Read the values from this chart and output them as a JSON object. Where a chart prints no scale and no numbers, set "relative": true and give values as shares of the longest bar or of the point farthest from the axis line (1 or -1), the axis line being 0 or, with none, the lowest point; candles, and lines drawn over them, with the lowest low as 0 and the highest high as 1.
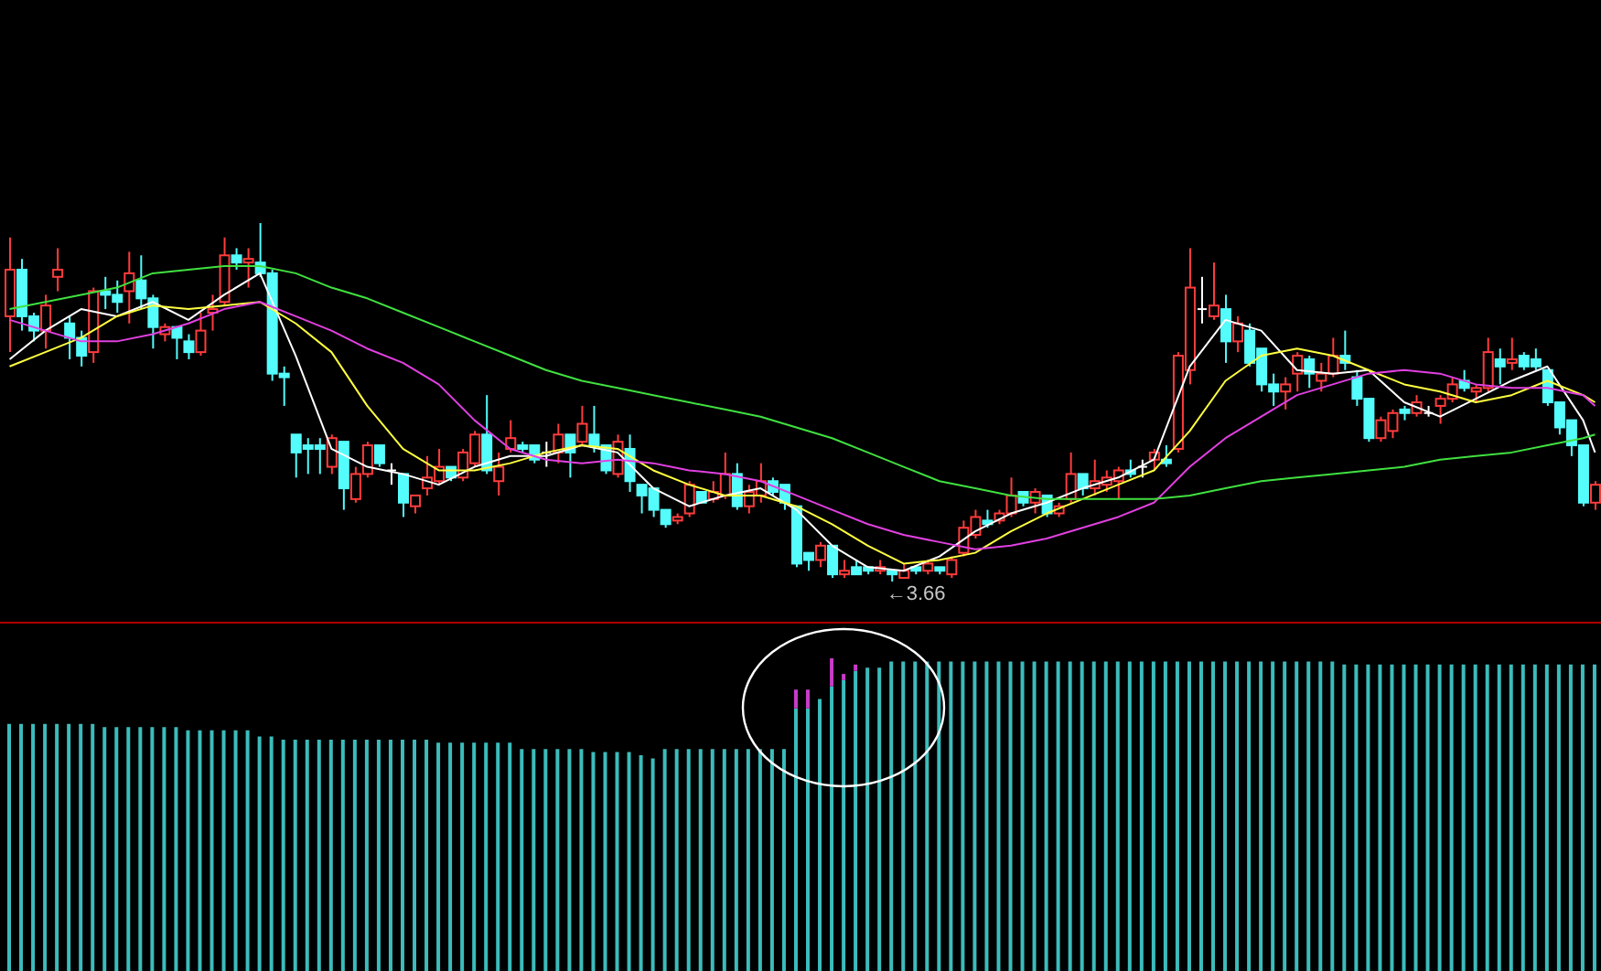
{
  "chart_data": [
    {
      "type": "candlestick",
      "relative": true,
      "marker": "none",
      "annotations": [
        "←3.66"
      ],
      "categories": [
        null,
        null,
        null,
        null,
        null,
        null,
        null,
        null,
        null,
        null,
        null,
        null,
        null,
        null,
        null,
        null,
        null,
        null,
        null,
        null,
        null,
        null,
        null,
        null,
        null,
        null,
        null,
        null,
        null,
        null,
        null,
        null,
        null,
        null,
        null,
        null,
        null,
        null,
        null,
        null,
        null,
        null,
        null,
        null,
        null,
        null,
        null,
        null,
        null,
        null,
        null,
        null,
        null,
        null,
        null,
        null,
        null,
        null,
        null,
        null,
        null,
        null,
        null,
        null,
        null,
        null,
        null,
        null,
        null,
        null,
        null,
        null,
        null,
        null,
        null,
        null,
        null,
        null,
        null,
        null,
        null,
        null,
        null,
        null,
        null,
        null,
        null,
        null,
        null,
        null,
        null,
        null,
        null,
        null,
        null,
        null,
        null,
        null,
        null,
        null,
        null,
        null,
        null,
        null,
        null,
        null,
        null,
        null,
        null,
        null,
        null,
        null,
        null,
        null,
        null,
        null,
        null,
        null,
        null,
        null,
        null,
        null,
        null,
        null,
        null,
        null,
        null,
        null,
        null,
        null,
        null,
        null,
        null,
        null
      ],
      "ohlc": [
        [
          0.74,
          0.96,
          0.64,
          0.87
        ],
        [
          0.87,
          0.9,
          0.7,
          0.74
        ],
        [
          0.74,
          0.75,
          0.67,
          0.7
        ],
        [
          0.7,
          0.8,
          0.65,
          0.77
        ],
        [
          0.85,
          0.93,
          0.81,
          0.87
        ],
        [
          0.72,
          0.74,
          0.62,
          0.68
        ],
        [
          0.68,
          0.7,
          0.6,
          0.63
        ],
        [
          0.64,
          0.82,
          0.61,
          0.81
        ],
        [
          0.81,
          0.85,
          0.76,
          0.8
        ],
        [
          0.8,
          0.84,
          0.75,
          0.78
        ],
        [
          0.81,
          0.92,
          0.72,
          0.86
        ],
        [
          0.84,
          0.91,
          0.76,
          0.79
        ],
        [
          0.79,
          0.8,
          0.65,
          0.71
        ],
        [
          0.69,
          0.72,
          0.67,
          0.71
        ],
        [
          0.71,
          0.71,
          0.62,
          0.68
        ],
        [
          0.67,
          0.69,
          0.62,
          0.64
        ],
        [
          0.64,
          0.75,
          0.63,
          0.7
        ],
        [
          0.75,
          0.8,
          0.7,
          0.76
        ],
        [
          0.78,
          0.96,
          0.77,
          0.91
        ],
        [
          0.91,
          0.93,
          0.87,
          0.89
        ],
        [
          0.89,
          0.93,
          0.82,
          0.9
        ],
        [
          0.89,
          1.0,
          0.85,
          0.86
        ],
        [
          0.86,
          0.87,
          0.56,
          0.58
        ],
        [
          0.58,
          0.6,
          0.49,
          0.57
        ],
        [
          0.41,
          0.41,
          0.29,
          0.36
        ],
        [
          0.38,
          0.4,
          0.3,
          0.37
        ],
        [
          0.38,
          0.4,
          0.3,
          0.37
        ],
        [
          0.32,
          0.41,
          0.3,
          0.4
        ],
        [
          0.39,
          0.39,
          0.2,
          0.26
        ],
        [
          0.23,
          0.32,
          0.22,
          0.3
        ],
        [
          0.3,
          0.39,
          0.29,
          0.38
        ],
        [
          0.38,
          0.38,
          0.32,
          0.33
        ],
        [
          0.31,
          0.33,
          0.27,
          0.31
        ],
        [
          0.3,
          0.3,
          0.18,
          0.22
        ],
        [
          0.21,
          0.24,
          0.19,
          0.24
        ],
        [
          0.26,
          0.35,
          0.24,
          0.29
        ],
        [
          0.28,
          0.37,
          0.27,
          0.32
        ],
        [
          0.32,
          0.32,
          0.28,
          0.29
        ],
        [
          0.29,
          0.37,
          0.28,
          0.36
        ],
        [
          0.33,
          0.42,
          0.32,
          0.41
        ],
        [
          0.41,
          0.52,
          0.3,
          0.31
        ],
        [
          0.28,
          0.36,
          0.24,
          0.32
        ],
        [
          0.37,
          0.45,
          0.36,
          0.4
        ],
        [
          0.38,
          0.39,
          0.36,
          0.37
        ],
        [
          0.38,
          0.38,
          0.33,
          0.34
        ],
        [
          0.36,
          0.39,
          0.32,
          0.36
        ],
        [
          0.36,
          0.44,
          0.33,
          0.41
        ],
        [
          0.41,
          0.41,
          0.29,
          0.36
        ],
        [
          0.39,
          0.49,
          0.38,
          0.44
        ],
        [
          0.41,
          0.49,
          0.36,
          0.38
        ],
        [
          0.38,
          0.38,
          0.3,
          0.31
        ],
        [
          0.3,
          0.41,
          0.29,
          0.39
        ],
        [
          0.37,
          0.41,
          0.25,
          0.28
        ],
        [
          0.27,
          0.27,
          0.19,
          0.24
        ],
        [
          0.26,
          0.26,
          0.18,
          0.2
        ],
        [
          0.2,
          0.2,
          0.15,
          0.16
        ],
        [
          0.17,
          0.19,
          0.16,
          0.18
        ],
        [
          0.19,
          0.28,
          0.18,
          0.27
        ],
        [
          0.25,
          0.25,
          0.22,
          0.22
        ],
        [
          0.23,
          0.28,
          0.22,
          0.25
        ],
        [
          0.24,
          0.36,
          0.23,
          0.3
        ],
        [
          0.3,
          0.33,
          0.2,
          0.21
        ],
        [
          0.21,
          0.27,
          0.19,
          0.25
        ],
        [
          0.24,
          0.33,
          0.22,
          0.28
        ],
        [
          0.28,
          0.29,
          0.24,
          0.25
        ],
        [
          0.27,
          0.27,
          0.2,
          0.22
        ],
        [
          0.21,
          0.21,
          0.04,
          0.05
        ],
        [
          0.08,
          0.08,
          0.03,
          0.06
        ],
        [
          0.06,
          0.11,
          0.04,
          0.1
        ],
        [
          0.1,
          0.1,
          0.01,
          0.02
        ],
        [
          0.02,
          0.06,
          0.01,
          0.03
        ],
        [
          0.04,
          0.06,
          0.02,
          0.02
        ],
        [
          0.04,
          0.04,
          0.02,
          0.03
        ],
        [
          0.03,
          0.06,
          0.02,
          0.04
        ],
        [
          0.03,
          0.03,
          0.0,
          0.02
        ],
        [
          0.01,
          0.05,
          0.01,
          0.03
        ],
        [
          0.04,
          0.04,
          0.02,
          0.03
        ],
        [
          0.03,
          0.06,
          0.02,
          0.05
        ],
        [
          0.04,
          0.04,
          0.02,
          0.03
        ],
        [
          0.02,
          0.07,
          0.01,
          0.06
        ],
        [
          0.08,
          0.17,
          0.07,
          0.15
        ],
        [
          0.13,
          0.2,
          0.12,
          0.18
        ],
        [
          0.17,
          0.2,
          0.15,
          0.16
        ],
        [
          0.17,
          0.2,
          0.16,
          0.19
        ],
        [
          0.19,
          0.29,
          0.18,
          0.24
        ],
        [
          0.25,
          0.25,
          0.21,
          0.22
        ],
        [
          0.22,
          0.26,
          0.19,
          0.25
        ],
        [
          0.24,
          0.24,
          0.18,
          0.19
        ],
        [
          0.19,
          0.22,
          0.18,
          0.21
        ],
        [
          0.23,
          0.36,
          0.22,
          0.3
        ],
        [
          0.3,
          0.3,
          0.24,
          0.26
        ],
        [
          0.26,
          0.34,
          0.24,
          0.28
        ],
        [
          0.27,
          0.31,
          0.25,
          0.29
        ],
        [
          0.28,
          0.32,
          0.23,
          0.31
        ],
        [
          0.31,
          0.34,
          0.29,
          0.3
        ],
        [
          0.32,
          0.34,
          0.29,
          0.32
        ],
        [
          0.34,
          0.37,
          0.31,
          0.36
        ],
        [
          0.34,
          0.38,
          0.32,
          0.33
        ],
        [
          0.37,
          0.64,
          0.36,
          0.63
        ],
        [
          0.59,
          0.93,
          0.55,
          0.82
        ],
        [
          0.76,
          0.85,
          0.72,
          0.76
        ],
        [
          0.74,
          0.89,
          0.73,
          0.77
        ],
        [
          0.76,
          0.8,
          0.61,
          0.67
        ],
        [
          0.67,
          0.74,
          0.64,
          0.72
        ],
        [
          0.7,
          0.72,
          0.6,
          0.61
        ],
        [
          0.65,
          0.65,
          0.53,
          0.55
        ],
        [
          0.55,
          0.58,
          0.49,
          0.53
        ],
        [
          0.53,
          0.57,
          0.48,
          0.55
        ],
        [
          0.58,
          0.64,
          0.53,
          0.63
        ],
        [
          0.62,
          0.63,
          0.54,
          0.58
        ],
        [
          0.56,
          0.61,
          0.53,
          0.58
        ],
        [
          0.58,
          0.68,
          0.57,
          0.63
        ],
        [
          0.63,
          0.7,
          0.59,
          0.61
        ],
        [
          0.57,
          0.59,
          0.49,
          0.51
        ],
        [
          0.51,
          0.51,
          0.39,
          0.4
        ],
        [
          0.4,
          0.46,
          0.39,
          0.45
        ],
        [
          0.42,
          0.48,
          0.4,
          0.47
        ],
        [
          0.48,
          0.49,
          0.45,
          0.47
        ],
        [
          0.47,
          0.52,
          0.46,
          0.5
        ],
        [
          0.47,
          0.49,
          0.46,
          0.47
        ],
        [
          0.49,
          0.52,
          0.44,
          0.51
        ],
        [
          0.51,
          0.57,
          0.5,
          0.55
        ],
        [
          0.56,
          0.59,
          0.53,
          0.54
        ],
        [
          0.53,
          0.55,
          0.5,
          0.54
        ],
        [
          0.54,
          0.68,
          0.53,
          0.64
        ],
        [
          0.62,
          0.65,
          0.55,
          0.6
        ],
        [
          0.61,
          0.68,
          0.59,
          0.62
        ],
        [
          0.63,
          0.64,
          0.59,
          0.6
        ],
        [
          0.62,
          0.65,
          0.59,
          0.6
        ],
        [
          0.59,
          0.59,
          0.49,
          0.5
        ],
        [
          0.5,
          0.5,
          0.41,
          0.43
        ],
        [
          0.45,
          0.45,
          0.35,
          0.38
        ],
        [
          0.38,
          0.38,
          0.21,
          0.22
        ],
        [
          0.22,
          0.28,
          0.2,
          0.27
        ]
      ],
      "colors": [
        "#ff3c3c",
        "#54fcfc",
        "#54fcfc",
        "#ff3c3c",
        "#ff3c3c",
        "#54fcfc",
        "#54fcfc",
        "#ff3c3c",
        "#54fcfc",
        "#54fcfc",
        "#ff3c3c",
        "#54fcfc",
        "#54fcfc",
        "#ff3c3c",
        "#54fcfc",
        "#54fcfc",
        "#ff3c3c",
        "#ff3c3c",
        "#ff3c3c",
        "#54fcfc",
        "#ff3c3c",
        "#54fcfc",
        "#54fcfc",
        "#54fcfc",
        "#54fcfc",
        "#54fcfc",
        "#54fcfc",
        "#ff3c3c",
        "#54fcfc",
        "#ff3c3c",
        "#ff3c3c",
        "#54fcfc",
        "#ffffff",
        "#54fcfc",
        "#ff3c3c",
        "#ff3c3c",
        "#ff3c3c",
        "#54fcfc",
        "#ff3c3c",
        "#ff3c3c",
        "#54fcfc",
        "#ff3c3c",
        "#ff3c3c",
        "#54fcfc",
        "#54fcfc",
        "#ffffff",
        "#ff3c3c",
        "#54fcfc",
        "#ff3c3c",
        "#54fcfc",
        "#54fcfc",
        "#ff3c3c",
        "#54fcfc",
        "#54fcfc",
        "#54fcfc",
        "#54fcfc",
        "#ff3c3c",
        "#ff3c3c",
        "#54fcfc",
        "#ff3c3c",
        "#ff3c3c",
        "#54fcfc",
        "#ff3c3c",
        "#ff3c3c",
        "#54fcfc",
        "#54fcfc",
        "#54fcfc",
        "#54fcfc",
        "#ff3c3c",
        "#54fcfc",
        "#ff3c3c",
        "#54fcfc",
        "#54fcfc",
        "#ff3c3c",
        "#54fcfc",
        "#ff3c3c",
        "#54fcfc",
        "#ff3c3c",
        "#54fcfc",
        "#ff3c3c",
        "#ff3c3c",
        "#ff3c3c",
        "#54fcfc",
        "#ff3c3c",
        "#ff3c3c",
        "#54fcfc",
        "#ff3c3c",
        "#54fcfc",
        "#ff3c3c",
        "#ff3c3c",
        "#54fcfc",
        "#ff3c3c",
        "#ff3c3c",
        "#ff3c3c",
        "#54fcfc",
        "#ffffff",
        "#ff3c3c",
        "#54fcfc",
        "#ff3c3c",
        "#ff3c3c",
        "#ffffff",
        "#ff3c3c",
        "#54fcfc",
        "#ff3c3c",
        "#54fcfc",
        "#54fcfc",
        "#54fcfc",
        "#ff3c3c",
        "#ff3c3c",
        "#54fcfc",
        "#ff3c3c",
        "#ff3c3c",
        "#54fcfc",
        "#54fcfc",
        "#54fcfc",
        "#ff3c3c",
        "#ff3c3c",
        "#54fcfc",
        "#ff3c3c",
        "#ffffff",
        "#ff3c3c",
        "#ff3c3c",
        "#54fcfc",
        "#ff3c3c",
        "#ff3c3c",
        "#54fcfc",
        "#ff3c3c",
        "#54fcfc",
        "#54fcfc",
        "#54fcfc",
        "#54fcfc",
        "#54fcfc",
        "#54fcfc",
        "#ff3c3c"
      ],
      "series": [
        {
          "type": "line",
          "color": "#ffffff",
          "values": [
            0.62,
            null,
            null,
            0.7,
            null,
            null,
            0.76,
            null,
            null,
            0.74,
            null,
            null,
            0.78,
            null,
            null,
            0.73,
            null,
            null,
            0.8,
            null,
            null,
            0.86,
            null,
            null,
            0.63,
            null,
            null,
            0.37,
            null,
            null,
            0.32,
            null,
            null,
            0.3,
            null,
            null,
            0.27,
            null,
            null,
            0.32,
            null,
            null,
            0.35,
            null,
            null,
            0.35,
            null,
            null,
            0.38,
            null,
            null,
            0.36,
            null,
            null,
            0.26,
            null,
            null,
            0.21,
            null,
            null,
            0.24,
            null,
            null,
            0.26,
            null,
            null,
            0.2,
            null,
            null,
            0.1,
            null,
            null,
            0.04,
            null,
            null,
            0.03,
            null,
            null,
            0.07,
            null,
            null,
            0.14,
            null,
            null,
            0.19,
            null,
            null,
            0.22,
            null,
            null,
            0.26,
            null,
            null,
            0.29,
            null,
            null,
            0.34,
            null,
            null,
            0.6,
            null,
            null,
            0.73,
            null,
            null,
            0.7,
            null,
            null,
            0.59,
            null,
            null,
            0.58,
            null,
            null,
            0.59,
            null,
            null,
            0.5,
            null,
            null,
            0.46,
            null,
            null,
            0.51,
            null,
            null,
            0.56,
            null,
            null,
            0.6,
            null,
            null,
            0.45,
            0.36
          ]
        },
        {
          "type": "line",
          "color": "#ffff40",
          "values": [
            0.6,
            null,
            null,
            0.64,
            null,
            null,
            0.68,
            null,
            null,
            0.74,
            null,
            null,
            0.77,
            null,
            null,
            0.76,
            null,
            null,
            0.77,
            null,
            null,
            0.78,
            null,
            null,
            0.72,
            null,
            null,
            0.64,
            null,
            null,
            0.49,
            null,
            null,
            0.37,
            null,
            null,
            0.31,
            null,
            null,
            0.31,
            null,
            null,
            0.33,
            null,
            null,
            0.36,
            null,
            null,
            0.38,
            null,
            null,
            0.37,
            null,
            null,
            0.31,
            null,
            null,
            0.27,
            null,
            null,
            0.24,
            null,
            null,
            0.24,
            null,
            null,
            0.21,
            null,
            null,
            0.16,
            null,
            null,
            0.1,
            null,
            null,
            0.05,
            null,
            null,
            0.06,
            null,
            null,
            0.08,
            null,
            null,
            0.14,
            null,
            null,
            0.19,
            null,
            null,
            0.23,
            null,
            null,
            0.27,
            null,
            null,
            0.31,
            null,
            null,
            0.42,
            null,
            null,
            0.56,
            null,
            null,
            0.63,
            null,
            null,
            0.65,
            null,
            null,
            0.63,
            null,
            null,
            0.59,
            null,
            null,
            0.55,
            null,
            null,
            0.53,
            null,
            null,
            0.5,
            null,
            null,
            0.52,
            null,
            null,
            0.56,
            null,
            null,
            0.52,
            0.5
          ]
        },
        {
          "type": "line",
          "color": "#e040e0",
          "values": [
            0.73,
            null,
            null,
            0.7,
            null,
            null,
            0.67,
            null,
            null,
            0.67,
            null,
            null,
            0.69,
            null,
            null,
            0.72,
            null,
            null,
            0.76,
            null,
            null,
            0.78,
            null,
            null,
            0.74,
            null,
            null,
            0.7,
            null,
            null,
            0.65,
            null,
            null,
            0.61,
            null,
            null,
            0.55,
            null,
            null,
            0.45,
            null,
            null,
            0.37,
            null,
            null,
            0.34,
            null,
            null,
            0.33,
            null,
            null,
            0.34,
            null,
            null,
            0.33,
            null,
            null,
            0.31,
            null,
            null,
            0.3,
            null,
            null,
            0.28,
            null,
            null,
            0.24,
            null,
            null,
            0.2,
            null,
            null,
            0.16,
            null,
            null,
            0.13,
            null,
            null,
            0.11,
            null,
            null,
            0.09,
            null,
            null,
            0.1,
            null,
            null,
            0.12,
            null,
            null,
            0.15,
            null,
            null,
            0.18,
            null,
            null,
            0.22,
            null,
            null,
            0.32,
            null,
            null,
            0.4,
            null,
            null,
            0.46,
            null,
            null,
            0.52,
            null,
            null,
            0.55,
            null,
            null,
            0.58,
            null,
            null,
            0.59,
            null,
            null,
            0.58,
            null,
            null,
            0.55,
            null,
            null,
            0.54,
            null,
            null,
            0.54,
            null,
            null,
            0.52,
            0.49
          ]
        },
        {
          "type": "line",
          "color": "#40e040",
          "values": [
            0.76,
            null,
            null,
            0.78,
            null,
            null,
            0.8,
            null,
            null,
            0.82,
            null,
            null,
            0.86,
            null,
            null,
            0.87,
            null,
            null,
            0.88,
            null,
            null,
            0.88,
            null,
            null,
            0.86,
            null,
            null,
            0.82,
            null,
            null,
            0.79,
            null,
            null,
            0.75,
            null,
            null,
            0.71,
            null,
            null,
            0.67,
            null,
            null,
            0.63,
            null,
            null,
            0.59,
            null,
            null,
            0.56,
            null,
            null,
            0.54,
            null,
            null,
            0.52,
            null,
            null,
            0.5,
            null,
            null,
            0.48,
            null,
            null,
            0.46,
            null,
            null,
            0.43,
            null,
            null,
            0.4,
            null,
            null,
            0.36,
            null,
            null,
            0.32,
            null,
            null,
            0.28,
            null,
            null,
            0.26,
            null,
            null,
            0.24,
            null,
            null,
            0.23,
            null,
            null,
            0.23,
            null,
            null,
            0.23,
            null,
            null,
            0.23,
            null,
            null,
            0.24,
            null,
            null,
            0.26,
            null,
            null,
            0.28,
            null,
            null,
            0.29,
            null,
            null,
            0.3,
            null,
            null,
            0.31,
            null,
            null,
            0.32,
            null,
            null,
            0.34,
            null,
            null,
            0.35,
            null,
            null,
            0.36,
            null,
            null,
            0.38,
            null,
            null,
            0.4,
            0.41
          ]
        }
      ]
    },
    {
      "type": "bar",
      "relative": true,
      "stacked": true,
      "categories": [
        null,
        null,
        null,
        null,
        null,
        null,
        null,
        null,
        null,
        null,
        null,
        null,
        null,
        null,
        null,
        null,
        null,
        null,
        null,
        null,
        null,
        null,
        null,
        null,
        null,
        null,
        null,
        null,
        null,
        null,
        null,
        null,
        null,
        null,
        null,
        null,
        null,
        null,
        null,
        null,
        null,
        null,
        null,
        null,
        null,
        null,
        null,
        null,
        null,
        null,
        null,
        null,
        null,
        null,
        null,
        null,
        null,
        null,
        null,
        null,
        null,
        null,
        null,
        null,
        null,
        null,
        null,
        null,
        null,
        null,
        null,
        null,
        null,
        null,
        null,
        null,
        null,
        null,
        null,
        null,
        null,
        null,
        null,
        null,
        null,
        null,
        null,
        null,
        null,
        null,
        null,
        null,
        null,
        null,
        null,
        null,
        null,
        null,
        null,
        null,
        null,
        null,
        null,
        null,
        null,
        null,
        null,
        null,
        null,
        null,
        null,
        null,
        null,
        null,
        null,
        null,
        null,
        null,
        null,
        null,
        null,
        null,
        null,
        null,
        null,
        null,
        null,
        null,
        null,
        null,
        null,
        null,
        null,
        null
      ],
      "series": [
        {
          "color": "#3cbcbc",
          "values": [
            0.79,
            0.79,
            0.79,
            0.79,
            0.79,
            0.79,
            0.79,
            0.79,
            0.78,
            0.78,
            0.78,
            0.78,
            0.78,
            0.78,
            0.78,
            0.77,
            0.77,
            0.77,
            0.77,
            0.77,
            0.77,
            0.75,
            0.75,
            0.74,
            0.74,
            0.74,
            0.74,
            0.74,
            0.74,
            0.74,
            0.74,
            0.74,
            0.74,
            0.74,
            0.74,
            0.74,
            0.73,
            0.73,
            0.73,
            0.73,
            0.73,
            0.73,
            0.73,
            0.71,
            0.71,
            0.71,
            0.71,
            0.71,
            0.71,
            0.7,
            0.7,
            0.7,
            0.7,
            0.69,
            0.68,
            0.71,
            0.71,
            0.71,
            0.71,
            0.71,
            0.71,
            0.71,
            0.71,
            0.71,
            0.71,
            0.71,
            0.84,
            0.84,
            0.87,
            0.91,
            0.93,
            0.96,
            0.97,
            0.97,
            0.99,
            0.99,
            0.99,
            0.99,
            0.99,
            0.99,
            0.99,
            0.99,
            0.99,
            0.99,
            0.99,
            0.99,
            0.99,
            0.99,
            0.99,
            0.99,
            0.99,
            0.99,
            0.99,
            0.99,
            0.99,
            0.99,
            0.99,
            0.99,
            0.99,
            0.99,
            0.99,
            0.99,
            0.99,
            0.99,
            0.99,
            0.99,
            0.99,
            0.99,
            0.99,
            0.99,
            0.99,
            0.99,
            0.98,
            0.98,
            0.98,
            0.98,
            0.98,
            0.98,
            0.98,
            0.98,
            0.98,
            0.98,
            0.98,
            0.98,
            0.98,
            0.98,
            0.98,
            0.98,
            0.98,
            0.98,
            0.98,
            0.98,
            0.98,
            0.98
          ]
        },
        {
          "color": "#c83cc8",
          "values": [
            null,
            null,
            null,
            null,
            null,
            null,
            null,
            null,
            null,
            null,
            null,
            null,
            null,
            null,
            null,
            null,
            null,
            null,
            null,
            null,
            null,
            null,
            null,
            null,
            null,
            null,
            null,
            null,
            null,
            null,
            null,
            null,
            null,
            null,
            null,
            null,
            null,
            null,
            null,
            null,
            null,
            null,
            null,
            null,
            null,
            null,
            null,
            null,
            null,
            null,
            null,
            null,
            null,
            null,
            null,
            null,
            null,
            null,
            null,
            null,
            null,
            null,
            null,
            null,
            null,
            null,
            0.06,
            0.06,
            null,
            0.09,
            0.02,
            0.02,
            null,
            null,
            null,
            null,
            null,
            null,
            null,
            null,
            null,
            null,
            null,
            null,
            null,
            null,
            null,
            null,
            null,
            null,
            null,
            null,
            null,
            null,
            null,
            null,
            null,
            null,
            null,
            null,
            null,
            null,
            null,
            null,
            null,
            null,
            null,
            null,
            null,
            null,
            null,
            null,
            null,
            null,
            null,
            null,
            null,
            null,
            null,
            null,
            null,
            null,
            null,
            null,
            null,
            null,
            null,
            null,
            null,
            null,
            null,
            null,
            null,
            null
          ]
        }
      ]
    }
  ]
}
